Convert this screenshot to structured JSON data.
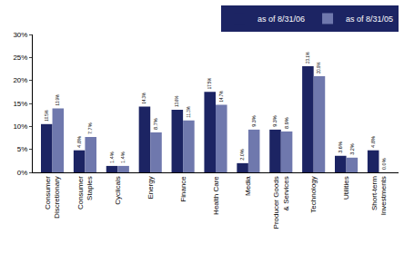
{
  "chart_data": {
    "type": "bar",
    "categories": [
      "Consumer Discretionary",
      "Consumer Staples",
      "Cyclicals",
      "Energy",
      "Finance",
      "Health Care",
      "Media",
      "Producer Goods & Services",
      "Technology",
      "Utilities",
      "Short-term Investments"
    ],
    "series": [
      {
        "name": "as of 8/31/06",
        "color": "#1c2463",
        "values": [
          10.5,
          4.8,
          1.4,
          14.3,
          13.6,
          17.5,
          2.0,
          9.3,
          23.1,
          3.6,
          4.8
        ],
        "value_labels": [
          "10.5%",
          "4.8%",
          "1.4%",
          "14.3%",
          "13.6%",
          "17.5%",
          "2.0%",
          "9.3%",
          "23.1%",
          "3.6%",
          "4.8%"
        ]
      },
      {
        "name": "as of 8/31/05",
        "color": "#6f78ad",
        "values": [
          13.9,
          7.7,
          1.4,
          8.7,
          11.3,
          14.7,
          9.3,
          8.9,
          20.9,
          3.2,
          0.0
        ],
        "value_labels": [
          "13.9%",
          "7.7%",
          "1.4%",
          "8.7%",
          "11.3%",
          "14.7%",
          "9.3%",
          "8.9%",
          "20.9%",
          "3.2%",
          "0.0%"
        ]
      }
    ],
    "ylim": [
      0,
      30
    ],
    "yticks": [
      {
        "value": 0,
        "label": "0%"
      },
      {
        "value": 5,
        "label": "5%"
      },
      {
        "value": 10,
        "label": "10%"
      },
      {
        "value": 15,
        "label": "15%"
      },
      {
        "value": 20,
        "label": "20%"
      },
      {
        "value": 25,
        "label": "25%"
      },
      {
        "value": 30,
        "label": "30%"
      }
    ],
    "grid": false,
    "legend": "upper right",
    "data_labels": true
  }
}
